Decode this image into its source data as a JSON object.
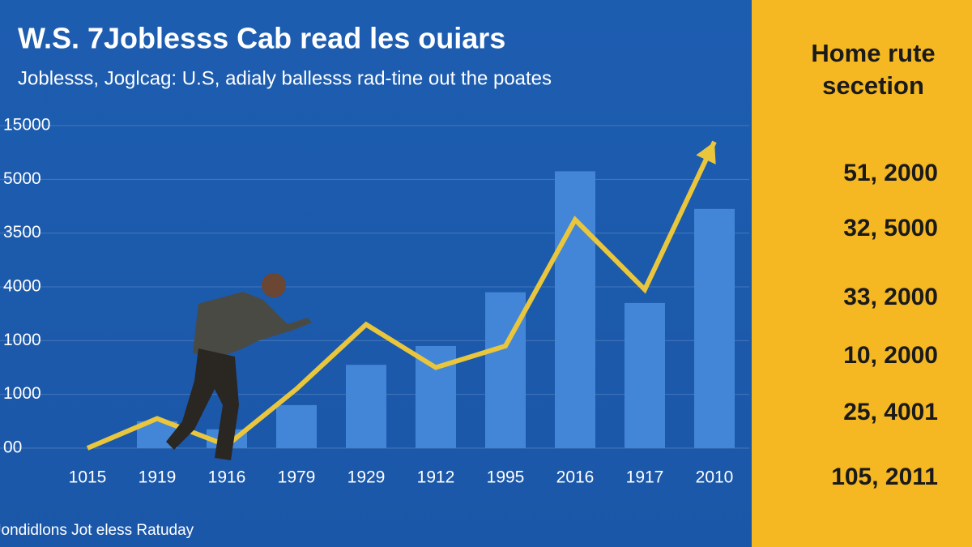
{
  "chart_data": {
    "type": "bar",
    "title": "W.S. 7Joblesss Cab read les ouiars",
    "subtitle": "Joblesss, Joglcag: U.S, adialy ballesss rad-tine out the poates",
    "footer": "Jondidlons Jot eless Ratuday",
    "categories": [
      "1015",
      "1919",
      "1916",
      "1979",
      "1929",
      "1912",
      "1995",
      "2016",
      "1917",
      "2010"
    ],
    "series": [
      {
        "type": "bar",
        "color": "#4386d8",
        "values": [
          null,
          0.5,
          0.35,
          0.8,
          1.55,
          1.9,
          2.9,
          5.15,
          2.7,
          4.45
        ]
      },
      {
        "type": "line",
        "color": "#e9c63b",
        "values": [
          0,
          0.55,
          0.05,
          1.1,
          2.3,
          1.5,
          1.9,
          4.25,
          2.95,
          5.7
        ]
      }
    ],
    "ylim": [
      0,
      6
    ],
    "yticks": [
      {
        "value": 0,
        "label": "00"
      },
      {
        "value": 1,
        "label": "1000"
      },
      {
        "value": 2,
        "label": "1000"
      },
      {
        "value": 3,
        "label": "4000"
      },
      {
        "value": 4,
        "label": "3500"
      },
      {
        "value": 5,
        "label": "5000"
      },
      {
        "value": 6,
        "label": "15000"
      }
    ],
    "grid": true
  },
  "side_panel": {
    "title": "Home rute secetion",
    "items": [
      "51, 2000",
      "32, 5000",
      "33, 2000",
      "10, 2000",
      "25, 4001",
      "105, 2011"
    ]
  }
}
